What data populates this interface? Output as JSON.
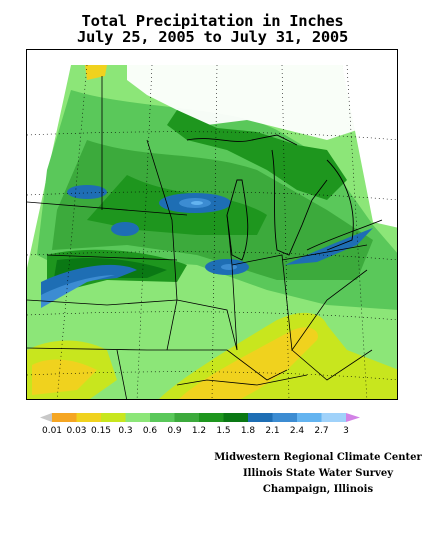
{
  "map": {
    "title_line1": "Total Precipitation in Inches",
    "title_line2": "July 25, 2005 to July 31, 2005",
    "units": "inches",
    "region": "Midwest United States",
    "no_data_color": "#ffffff"
  },
  "legend": {
    "items": [
      {
        "label": "0.01",
        "color": "#c8c8c8"
      },
      {
        "label": "0.03",
        "color": "#f5a623"
      },
      {
        "label": "0.15",
        "color": "#f0d21e"
      },
      {
        "label": "0.3",
        "color": "#c8e61e"
      },
      {
        "label": "0.6",
        "color": "#8ce678"
      },
      {
        "label": "0.9",
        "color": "#5ac85a"
      },
      {
        "label": "1.2",
        "color": "#3caa3c"
      },
      {
        "label": "1.5",
        "color": "#1e961e"
      },
      {
        "label": "1.8",
        "color": "#0a7814"
      },
      {
        "label": "2.1",
        "color": "#1e6eb4"
      },
      {
        "label": "2.4",
        "color": "#3c8cd2"
      },
      {
        "label": "2.7",
        "color": "#64b4f0"
      },
      {
        "label": "3",
        "color": "#a0d2fa"
      }
    ],
    "overflow_color": "#d282e6"
  },
  "credits": {
    "line1": "Midwestern Regional Climate Center",
    "line2": "Illinois State Water Survey",
    "line3": "Champaign, Illinois"
  }
}
